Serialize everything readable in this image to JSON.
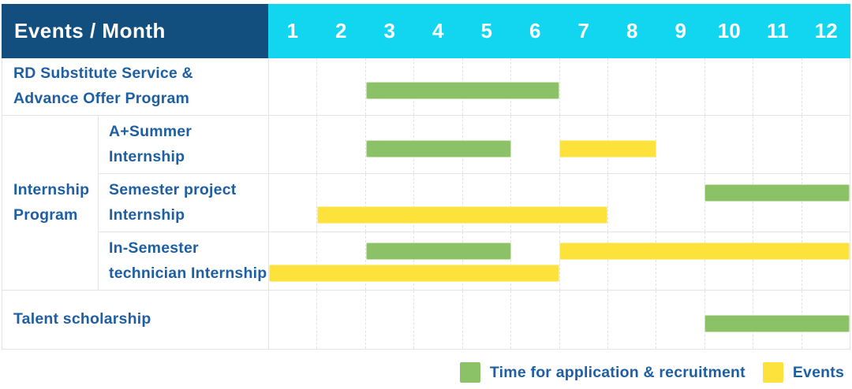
{
  "header": {
    "title": "Events / Month"
  },
  "colors": {
    "header_navy": "#134f7e",
    "header_cyan": "#12d6ef",
    "bar_green": "#8cc267",
    "bar_yellow": "#fde23c",
    "label_blue": "#1e5fa3",
    "grid_line": "#e3e3e3"
  },
  "chart_data": {
    "type": "bar",
    "variant": "gantt",
    "title": "Events / Month",
    "xlabel": "Month",
    "x_ticks": [
      "1",
      "2",
      "3",
      "4",
      "5",
      "6",
      "7",
      "8",
      "9",
      "10",
      "11",
      "12"
    ],
    "x_range": [
      1,
      12
    ],
    "grid": true,
    "legend_position": "bottom-right",
    "series_legend": [
      {
        "name": "Time for application & recruitment",
        "color_key": "bar_green"
      },
      {
        "name": "Events",
        "color_key": "bar_yellow"
      }
    ],
    "rows": [
      {
        "group": "",
        "label": "RD Substitute Service & Advance Offer Program",
        "label_lines": [
          "RD Substitute Service &",
          "Advance Offer Program"
        ],
        "tracks": 1,
        "bars": [
          {
            "series": "Time for application & recruitment",
            "color": "green",
            "start_month": 3,
            "end_month": 6,
            "track": 0
          }
        ]
      },
      {
        "group": "Internship Program",
        "group_lines": [
          "Internship",
          "Program"
        ],
        "label": "A+Summer Internship",
        "label_lines": [
          "A+Summer",
          "Internship"
        ],
        "tracks": 1,
        "bars": [
          {
            "series": "Time for application & recruitment",
            "color": "green",
            "start_month": 3,
            "end_month": 5,
            "track": 0
          },
          {
            "series": "Events",
            "color": "yellow",
            "start_month": 7,
            "end_month": 8,
            "track": 0
          }
        ]
      },
      {
        "group": "Internship Program",
        "label": "Semester project Internship",
        "label_lines": [
          "Semester project",
          "Internship"
        ],
        "tracks": 2,
        "bars": [
          {
            "series": "Time for application & recruitment",
            "color": "green",
            "start_month": 10,
            "end_month": 12,
            "track": 0
          },
          {
            "series": "Events",
            "color": "yellow",
            "start_month": 2,
            "end_month": 7,
            "track": 1
          }
        ]
      },
      {
        "group": "Internship Program",
        "label": "In-Semester technician Internship",
        "label_lines": [
          "In-Semester",
          "technician Internship"
        ],
        "tracks": 2,
        "bars": [
          {
            "series": "Time for application & recruitment",
            "color": "green",
            "start_month": 3,
            "end_month": 5,
            "track": 0
          },
          {
            "series": "Events",
            "color": "yellow",
            "start_month": 7,
            "end_month": 12,
            "track": 0
          },
          {
            "series": "Events",
            "color": "yellow",
            "start_month": 1,
            "end_month": 6,
            "track": 1
          }
        ]
      },
      {
        "group": "",
        "label": "Talent scholarship",
        "label_lines": [
          "Talent scholarship"
        ],
        "tracks": 1,
        "bars": [
          {
            "series": "Time for application & recruitment",
            "color": "green",
            "start_month": 10,
            "end_month": 12,
            "track": 0
          }
        ]
      }
    ]
  }
}
